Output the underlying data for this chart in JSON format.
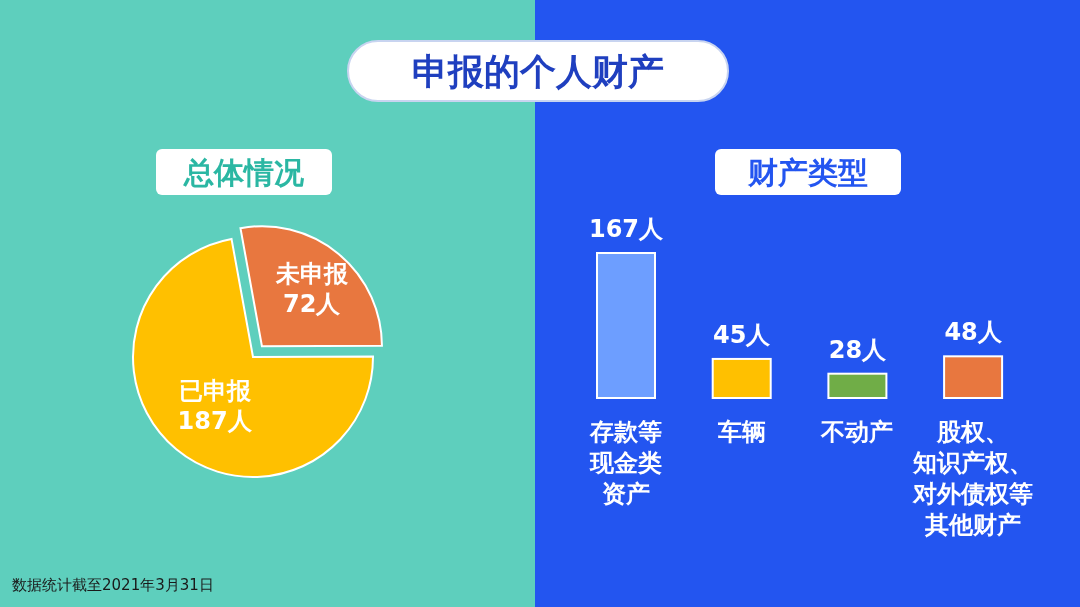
{
  "chart_data": [
    {
      "type": "pie",
      "title": "申报的个人财产",
      "subtitle": "总体情况",
      "categories": [
        "未申报",
        "已申报"
      ],
      "values": [
        72,
        187
      ],
      "colors": [
        "#e8773f",
        "#ffc000"
      ],
      "value_labels": [
        "72人",
        "187人"
      ],
      "annotations": [
        "数据统计截至2021年3月31日"
      ]
    },
    {
      "type": "bar",
      "title": "财产类型",
      "categories": [
        "存款等现金类资产",
        "车辆",
        "不动产",
        "股权、知识产权、对外债权等其他财产"
      ],
      "values": [
        167,
        45,
        28,
        48
      ],
      "colors": [
        "#6d9eff",
        "#ffc000",
        "#70ad47",
        "#e8773f"
      ],
      "value_labels": [
        "167人",
        "45人",
        "28人",
        "48人"
      ]
    }
  ]
}
